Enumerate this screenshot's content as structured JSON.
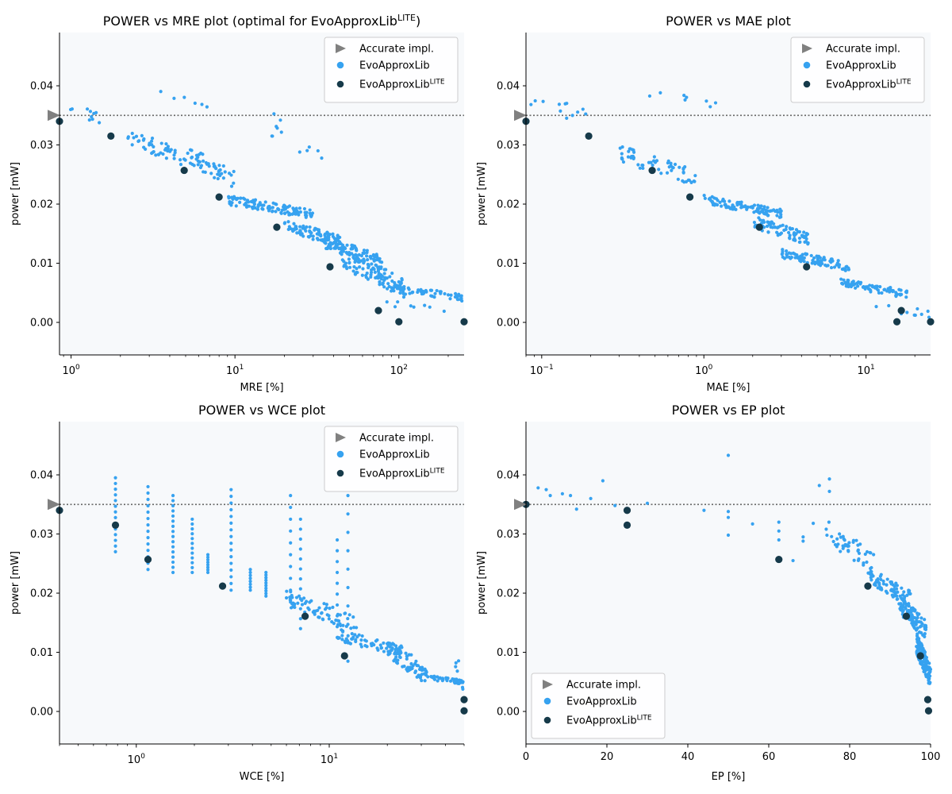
{
  "colors": {
    "plot_bg": "#f7f9fb",
    "accurate": "#808080",
    "evo": "#36a2f0",
    "lite": "#163a4a",
    "ref_line": "#666666"
  },
  "chart_data": [
    {
      "type": "scatter",
      "title": "POWER vs MRE plot (optimal for EvoApproxLib",
      "title_sup": "LITE",
      "title_end": ")",
      "xlabel": "MRE [%]",
      "ylabel": "power [mW]",
      "xscale": "log",
      "xlim": [
        0.85,
        250
      ],
      "ylim": [
        -0.0055,
        0.049
      ],
      "xticks": [
        {
          "value": 1,
          "base": "10",
          "exp": "0"
        },
        {
          "value": 10,
          "base": "10",
          "exp": "1"
        },
        {
          "value": 100,
          "base": "10",
          "exp": "2"
        }
      ],
      "yticks": [
        0.0,
        0.01,
        0.02,
        0.03,
        0.04
      ],
      "ytick_labels": [
        "0.00",
        "0.01",
        "0.02",
        "0.03",
        "0.04"
      ],
      "legend": {
        "placement": "top-right",
        "entries": [
          {
            "label": "Accurate impl.",
            "sup": ""
          },
          {
            "label": "EvoApproxLib",
            "sup": ""
          },
          {
            "label": "EvoApproxLib",
            "sup": "LITE"
          }
        ]
      },
      "accurate": {
        "x": 0.85,
        "y": 0.035
      },
      "reference_line_y": 0.035,
      "lite_points": [
        [
          0.85,
          0.034
        ],
        [
          1.75,
          0.0315
        ],
        [
          4.9,
          0.0257
        ],
        [
          8,
          0.0212
        ],
        [
          18,
          0.0161
        ],
        [
          38,
          0.0094
        ],
        [
          75,
          0.002
        ],
        [
          100,
          0.0001
        ],
        [
          250,
          0.0001
        ]
      ],
      "evo_clusters": [
        {
          "x": [
            0.9,
            1.6
          ],
          "y": [
            0.033,
            0.0385
          ],
          "n": 10
        },
        {
          "x": [
            2.2,
            5
          ],
          "y": [
            0.026,
            0.033
          ],
          "n": 45
        },
        {
          "x": [
            3.5,
            8
          ],
          "y": [
            0.036,
            0.0395
          ],
          "n": 6
        },
        {
          "x": [
            5,
            10
          ],
          "y": [
            0.0225,
            0.03
          ],
          "n": 50
        },
        {
          "x": [
            9,
            30
          ],
          "y": [
            0.0175,
            0.0215
          ],
          "n": 110
        },
        {
          "x": [
            15,
            35
          ],
          "y": [
            0.0245,
            0.0365
          ],
          "n": 12
        },
        {
          "x": [
            20,
            45
          ],
          "y": [
            0.0125,
            0.0175
          ],
          "n": 90
        },
        {
          "x": [
            35,
            80
          ],
          "y": [
            0.0085,
            0.015
          ],
          "n": 100
        },
        {
          "x": [
            45,
            110
          ],
          "y": [
            0.004,
            0.0125
          ],
          "n": 100
        },
        {
          "x": [
            90,
            250
          ],
          "y": [
            0.0035,
            0.0065
          ],
          "n": 60
        },
        {
          "x": [
            70,
            200
          ],
          "y": [
            0.0015,
            0.004
          ],
          "n": 8
        }
      ]
    },
    {
      "type": "scatter",
      "title": "POWER vs MAE plot",
      "title_sup": "",
      "title_end": "",
      "xlabel": "MAE [%]",
      "ylabel": "power [mW]",
      "xscale": "log",
      "xlim": [
        0.08,
        25
      ],
      "ylim": [
        -0.0055,
        0.049
      ],
      "xticks": [
        {
          "value": 0.1,
          "base": "10",
          "exp": "−1"
        },
        {
          "value": 1,
          "base": "10",
          "exp": "0"
        },
        {
          "value": 10,
          "base": "10",
          "exp": "1"
        }
      ],
      "yticks": [
        0.0,
        0.01,
        0.02,
        0.03,
        0.04
      ],
      "ytick_labels": [
        "0.00",
        "0.01",
        "0.02",
        "0.03",
        "0.04"
      ],
      "legend": {
        "placement": "top-right",
        "entries": [
          {
            "label": "Accurate impl.",
            "sup": ""
          },
          {
            "label": "EvoApproxLib",
            "sup": ""
          },
          {
            "label": "EvoApproxLib",
            "sup": "LITE"
          }
        ]
      },
      "accurate": {
        "x": 0.08,
        "y": 0.035
      },
      "reference_line_y": 0.035,
      "lite_points": [
        [
          0.08,
          0.034
        ],
        [
          0.195,
          0.0315
        ],
        [
          0.48,
          0.0257
        ],
        [
          0.82,
          0.0212
        ],
        [
          2.2,
          0.0161
        ],
        [
          4.3,
          0.0094
        ],
        [
          16.5,
          0.002
        ],
        [
          15.5,
          0.0001
        ],
        [
          25,
          0.0001
        ]
      ],
      "evo_clusters": [
        {
          "x": [
            0.08,
            0.2
          ],
          "y": [
            0.033,
            0.0395
          ],
          "n": 12
        },
        {
          "x": [
            0.3,
            0.9
          ],
          "y": [
            0.023,
            0.03
          ],
          "n": 60
        },
        {
          "x": [
            0.4,
            2
          ],
          "y": [
            0.0355,
            0.0395
          ],
          "n": 8
        },
        {
          "x": [
            1,
            3
          ],
          "y": [
            0.0175,
            0.0215
          ],
          "n": 100
        },
        {
          "x": [
            2,
            4.5
          ],
          "y": [
            0.013,
            0.018
          ],
          "n": 80
        },
        {
          "x": [
            3,
            8
          ],
          "y": [
            0.0085,
            0.0125
          ],
          "n": 90
        },
        {
          "x": [
            7,
            18
          ],
          "y": [
            0.004,
            0.0075
          ],
          "n": 80
        },
        {
          "x": [
            10,
            25
          ],
          "y": [
            0.0005,
            0.004
          ],
          "n": 10
        }
      ]
    },
    {
      "type": "scatter",
      "title": "POWER vs WCE plot",
      "title_sup": "",
      "title_end": "",
      "xlabel": "WCE [%]",
      "ylabel": "power [mW]",
      "xscale": "log",
      "xlim": [
        0.4,
        50
      ],
      "ylim": [
        -0.0055,
        0.049
      ],
      "xticks": [
        {
          "value": 1,
          "base": "10",
          "exp": "0"
        },
        {
          "value": 10,
          "base": "10",
          "exp": "1"
        }
      ],
      "yticks": [
        0.0,
        0.01,
        0.02,
        0.03,
        0.04
      ],
      "ytick_labels": [
        "0.00",
        "0.01",
        "0.02",
        "0.03",
        "0.04"
      ],
      "legend": {
        "placement": "top-right",
        "entries": [
          {
            "label": "Accurate impl.",
            "sup": ""
          },
          {
            "label": "EvoApproxLib",
            "sup": ""
          },
          {
            "label": "EvoApproxLib",
            "sup": "LITE"
          }
        ]
      },
      "accurate": {
        "x": 0.4,
        "y": 0.035
      },
      "reference_line_y": 0.035,
      "lite_points": [
        [
          0.4,
          0.034
        ],
        [
          0.78,
          0.0315
        ],
        [
          1.15,
          0.0257
        ],
        [
          2.8,
          0.0212
        ],
        [
          7.5,
          0.0161
        ],
        [
          12,
          0.0094
        ],
        [
          50,
          0.002
        ],
        [
          50,
          0.0001
        ]
      ],
      "evo_columns": [
        {
          "x": 0.78,
          "y": [
            0.027,
            0.0395
          ],
          "n": 14
        },
        {
          "x": 1.15,
          "y": [
            0.024,
            0.038
          ],
          "n": 14
        },
        {
          "x": 1.55,
          "y": [
            0.0235,
            0.0365
          ],
          "n": 16
        },
        {
          "x": 1.95,
          "y": [
            0.0235,
            0.0325
          ],
          "n": 12
        },
        {
          "x": 2.35,
          "y": [
            0.0235,
            0.0265
          ],
          "n": 8
        },
        {
          "x": 3.1,
          "y": [
            0.0205,
            0.0375
          ],
          "n": 16
        },
        {
          "x": 3.9,
          "y": [
            0.0205,
            0.024
          ],
          "n": 8
        },
        {
          "x": 4.7,
          "y": [
            0.0195,
            0.0235
          ],
          "n": 10
        },
        {
          "x": 6.3,
          "y": [
            0.0185,
            0.0365
          ],
          "n": 10
        },
        {
          "x": 7.1,
          "y": [
            0.014,
            0.0325
          ],
          "n": 12
        },
        {
          "x": 11,
          "y": [
            0.0125,
            0.029
          ],
          "n": 10
        },
        {
          "x": 12.5,
          "y": [
            0.0085,
            0.0365
          ],
          "n": 10
        }
      ],
      "evo_clusters": [
        {
          "x": [
            6,
            14
          ],
          "y": [
            0.0135,
            0.0205
          ],
          "n": 70
        },
        {
          "x": [
            11,
            24
          ],
          "y": [
            0.009,
            0.014
          ],
          "n": 70
        },
        {
          "x": [
            20,
            32
          ],
          "y": [
            0.0045,
            0.0125
          ],
          "n": 60
        },
        {
          "x": [
            28,
            50
          ],
          "y": [
            0.0045,
            0.0065
          ],
          "n": 50
        },
        {
          "x": [
            45,
            50
          ],
          "y": [
            0.0005,
            0.012
          ],
          "n": 8
        }
      ]
    },
    {
      "type": "scatter",
      "title": "POWER vs EP plot",
      "title_sup": "",
      "title_end": "",
      "xlabel": "EP [%]",
      "ylabel": "power [mW]",
      "xscale": "linear",
      "xlim": [
        0,
        100
      ],
      "ylim": [
        -0.0055,
        0.049
      ],
      "xticks": [
        {
          "value": 0,
          "label": "0"
        },
        {
          "value": 20,
          "label": "20"
        },
        {
          "value": 40,
          "label": "40"
        },
        {
          "value": 60,
          "label": "60"
        },
        {
          "value": 80,
          "label": "80"
        },
        {
          "value": 100,
          "label": "100"
        }
      ],
      "yticks": [
        0.0,
        0.01,
        0.02,
        0.03,
        0.04
      ],
      "ytick_labels": [
        "0.00",
        "0.01",
        "0.02",
        "0.03",
        "0.04"
      ],
      "legend": {
        "placement": "bottom-left",
        "entries": [
          {
            "label": "Accurate impl.",
            "sup": ""
          },
          {
            "label": "EvoApproxLib",
            "sup": ""
          },
          {
            "label": "EvoApproxLib",
            "sup": "LITE"
          }
        ]
      },
      "accurate": {
        "x": 0,
        "y": 0.035
      },
      "reference_line_y": 0.035,
      "lite_points": [
        [
          0,
          0.035
        ],
        [
          25,
          0.034
        ],
        [
          25,
          0.0315
        ],
        [
          62.5,
          0.0257
        ],
        [
          84.5,
          0.0212
        ],
        [
          94,
          0.0161
        ],
        [
          97.5,
          0.0094
        ],
        [
          99.3,
          0.002
        ],
        [
          99.5,
          0.0001
        ]
      ],
      "evo_points": [
        [
          3,
          0.0378
        ],
        [
          5,
          0.0375
        ],
        [
          6,
          0.0365
        ],
        [
          9,
          0.0368
        ],
        [
          11,
          0.0365
        ],
        [
          12.5,
          0.0342
        ],
        [
          16,
          0.036
        ],
        [
          19,
          0.039
        ],
        [
          22,
          0.0348
        ],
        [
          30,
          0.0352
        ],
        [
          44,
          0.034
        ],
        [
          50,
          0.0433
        ],
        [
          50,
          0.0338
        ],
        [
          50,
          0.0328
        ],
        [
          50,
          0.0298
        ],
        [
          56,
          0.0317
        ],
        [
          62.5,
          0.032
        ],
        [
          62.5,
          0.0305
        ],
        [
          62.5,
          0.029
        ],
        [
          66,
          0.0255
        ],
        [
          68.5,
          0.0295
        ],
        [
          68.5,
          0.0288
        ],
        [
          71,
          0.0318
        ],
        [
          72.5,
          0.0382
        ],
        [
          75,
          0.0393
        ],
        [
          75,
          0.0372
        ]
      ],
      "evo_clusters": [
        {
          "x": [
            74,
            86
          ],
          "y": [
            0.0225,
            0.033
          ],
          "n": 50
        },
        {
          "x": [
            85,
            95
          ],
          "y": [
            0.0175,
            0.0245
          ],
          "n": 80
        },
        {
          "x": [
            92,
            99
          ],
          "y": [
            0.012,
            0.02
          ],
          "n": 90
        },
        {
          "x": [
            96.5,
            100
          ],
          "y": [
            0.004,
            0.0135
          ],
          "n": 140
        }
      ]
    }
  ]
}
